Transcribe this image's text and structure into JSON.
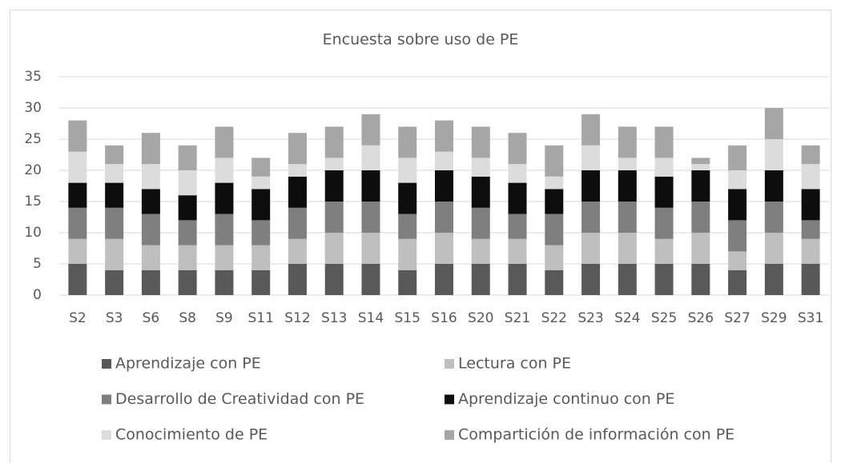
{
  "chart_data": {
    "type": "stacked_bar",
    "title": "Encuesta sobre uso de PE",
    "categories": [
      "S2",
      "S3",
      "S6",
      "S8",
      "S9",
      "S11",
      "S12",
      "S13",
      "S14",
      "S15",
      "S16",
      "S20",
      "S21",
      "S22",
      "S23",
      "S24",
      "S25",
      "S26",
      "S27",
      "S29",
      "S31"
    ],
    "series": [
      {
        "name": "Aprendizaje con PE",
        "color": "#595959",
        "values": [
          5,
          4,
          4,
          4,
          4,
          4,
          5,
          5,
          5,
          4,
          5,
          5,
          5,
          4,
          5,
          5,
          5,
          5,
          4,
          5,
          5
        ]
      },
      {
        "name": "Lectura con PE",
        "color": "#bfbfbf",
        "values": [
          4,
          5,
          4,
          4,
          4,
          4,
          4,
          5,
          5,
          5,
          5,
          4,
          4,
          4,
          5,
          5,
          4,
          5,
          3,
          5,
          4
        ]
      },
      {
        "name": "Desarrollo de Creatividad con PE",
        "color": "#7f7f7f",
        "values": [
          5,
          5,
          5,
          4,
          5,
          4,
          5,
          5,
          5,
          4,
          5,
          5,
          4,
          5,
          5,
          5,
          5,
          5,
          5,
          5,
          3
        ]
      },
      {
        "name": "Aprendizaje continuo con PE",
        "color": "#0d0d0d",
        "values": [
          4,
          4,
          4,
          4,
          5,
          5,
          5,
          5,
          5,
          5,
          5,
          5,
          5,
          4,
          5,
          5,
          5,
          5,
          5,
          5,
          5
        ]
      },
      {
        "name": "Conocimiento de PE",
        "color": "#dcdcdc",
        "values": [
          5,
          3,
          4,
          4,
          4,
          2,
          2,
          2,
          4,
          4,
          3,
          3,
          3,
          2,
          4,
          2,
          3,
          1,
          3,
          5,
          4
        ]
      },
      {
        "name": "Compartición de información con PE",
        "color": "#a6a6a6",
        "values": [
          5,
          3,
          5,
          4,
          5,
          3,
          5,
          5,
          5,
          5,
          5,
          5,
          5,
          5,
          5,
          5,
          5,
          1,
          4,
          5,
          3
        ]
      }
    ],
    "ylim": [
      0,
      35
    ],
    "yticks": [
      0,
      5,
      10,
      15,
      20,
      25,
      30,
      35
    ],
    "grid": true,
    "legend": "bottom"
  }
}
